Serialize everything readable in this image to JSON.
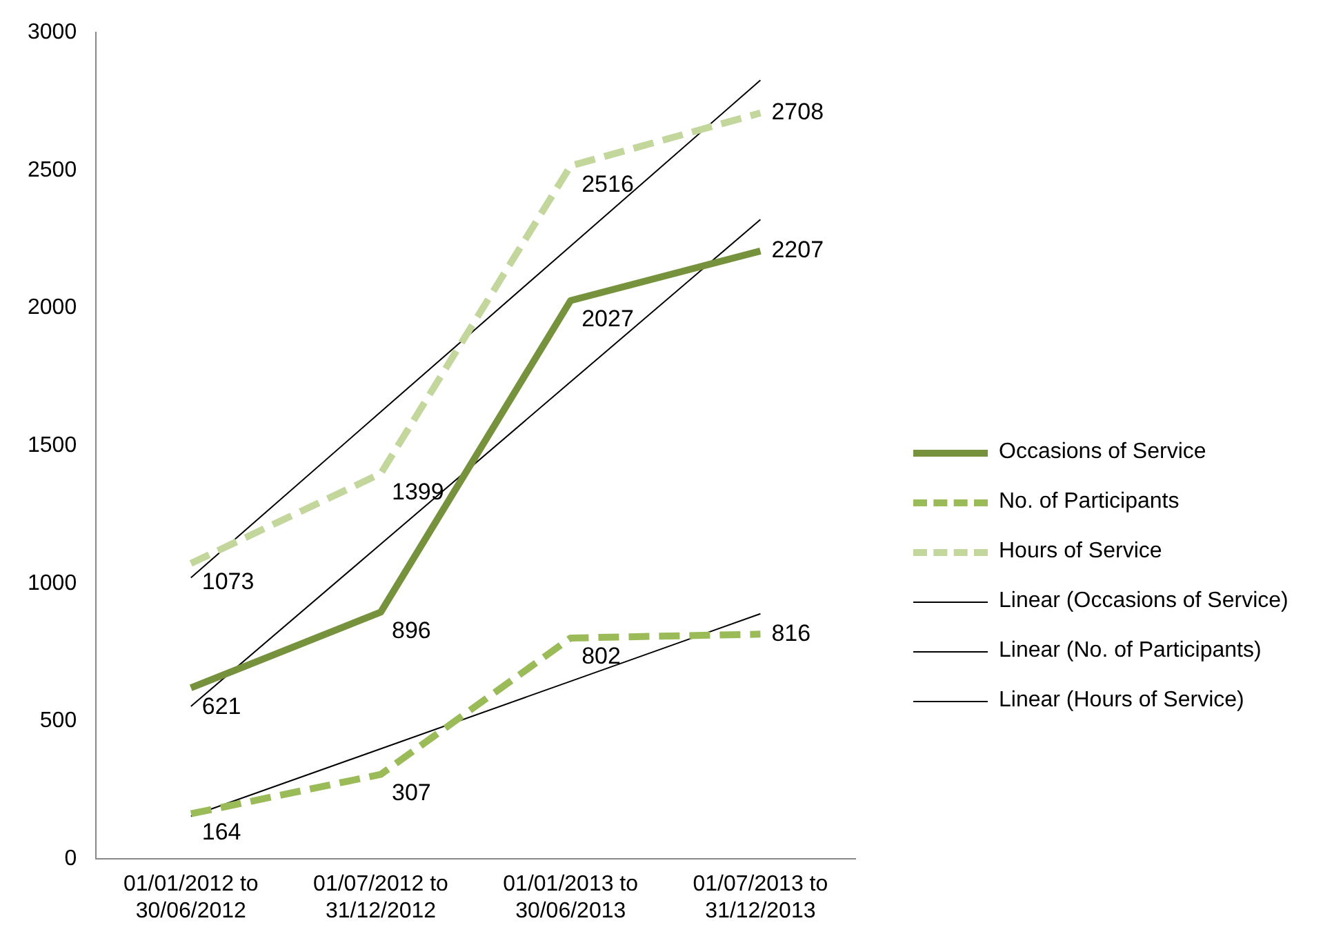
{
  "chart_data": {
    "type": "line",
    "categories": [
      "01/01/2012 to 30/06/2012",
      "01/07/2012 to 31/12/2012",
      "01/01/2013 to 30/06/2013",
      "01/07/2013 to 31/12/2013"
    ],
    "series": [
      {
        "name": "Occasions of Service",
        "color": "#76923c",
        "values": [
          621,
          896,
          2027,
          2207
        ],
        "value_labels": [
          "621",
          "896",
          "2027",
          "2207"
        ],
        "line_style": "solid"
      },
      {
        "name": "No. of Participants",
        "color": "#9bbb59",
        "values": [
          164,
          307,
          802,
          816
        ],
        "value_labels": [
          "164",
          "307",
          "802",
          "816"
        ],
        "line_style": "dashed"
      },
      {
        "name": "Hours of Service",
        "color": "#c3d69b",
        "values": [
          1073,
          1399,
          2516,
          2708
        ],
        "value_labels": [
          "1073",
          "1399",
          "2516",
          "2708"
        ],
        "line_style": "dashed"
      },
      {
        "name": "Linear (Occasions of Service)",
        "color": "#000000",
        "values": [
          554,
          1143,
          1732,
          2321
        ],
        "line_style": "solid"
      },
      {
        "name": "Linear (No. of Participants)",
        "color": "#000000",
        "values": [
          155,
          400,
          645,
          890
        ],
        "line_style": "solid"
      },
      {
        "name": "Linear (Hours of Service)",
        "color": "#000000",
        "values": [
          1021,
          1623,
          2225,
          2827
        ],
        "line_style": "solid"
      }
    ],
    "ylim": [
      0,
      3000
    ],
    "yticks": [
      0,
      500,
      1000,
      1500,
      2000,
      2500,
      3000
    ],
    "grid": false,
    "legend": "right",
    "marker": "none"
  }
}
